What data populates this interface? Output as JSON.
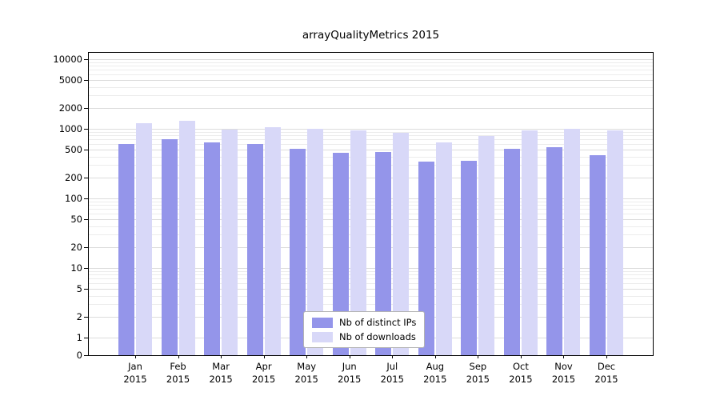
{
  "chart_data": {
    "type": "bar",
    "title": "arrayQualityMetrics 2015",
    "categories": [
      "Jan",
      "Feb",
      "Mar",
      "Apr",
      "May",
      "Jun",
      "Jul",
      "Aug",
      "Sep",
      "Oct",
      "Nov",
      "Dec"
    ],
    "category_year": "2015",
    "series": [
      {
        "name": "Nb of distinct IPs",
        "color": "#9495ea",
        "values": [
          600,
          700,
          630,
          610,
          520,
          450,
          460,
          340,
          345,
          520,
          550,
          420
        ]
      },
      {
        "name": "Nb of downloads",
        "color": "#d8d8f8",
        "values": [
          1200,
          1300,
          970,
          1060,
          1000,
          940,
          870,
          640,
          780,
          940,
          990,
          950
        ]
      }
    ],
    "yticks": [
      0,
      1,
      2,
      5,
      10,
      20,
      50,
      100,
      200,
      500,
      1000,
      2000,
      5000,
      10000
    ],
    "yscale": "log above 1, linear segment from 0 to 1",
    "ylim": [
      0,
      12000
    ],
    "grid": true,
    "legend_position": "lower center inside plot",
    "axis_color": "#000000",
    "grid_color": "#dcdcdc",
    "grid_minor_color": "#ececec",
    "background": "#ffffff"
  }
}
